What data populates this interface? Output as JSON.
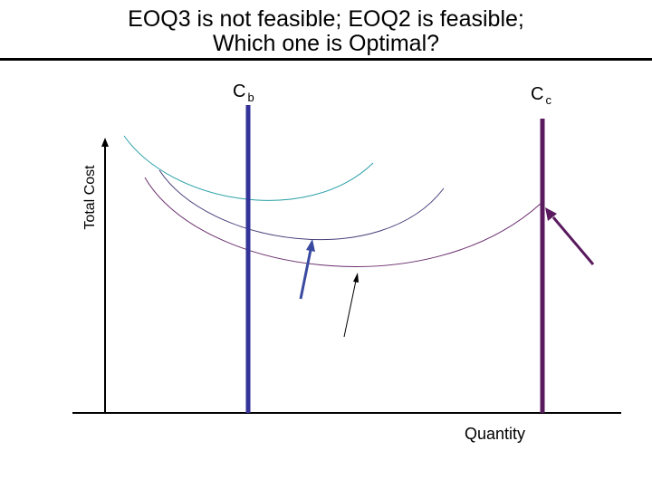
{
  "title": {
    "line1": "EOQ3 is not feasible; EOQ2 is feasible;",
    "line2": "Which one is Optimal?"
  },
  "axes": {
    "ylabel": "Total Cost",
    "xlabel": "Quantity"
  },
  "constraints": {
    "cb": {
      "main": "C",
      "sub": "b",
      "color": "#333399"
    },
    "cc": {
      "main": "C",
      "sub": "c",
      "color": "#5a1a5e"
    }
  },
  "colors": {
    "curve_top": "#2aa0a8",
    "curve_mid": "#4a3d7a",
    "curve_low": "#6a2f6e",
    "arrow_blue": "#3a4aa0",
    "arrow_black": "#000000",
    "arrow_purple": "#5a1a5e",
    "axis": "#000000"
  }
}
